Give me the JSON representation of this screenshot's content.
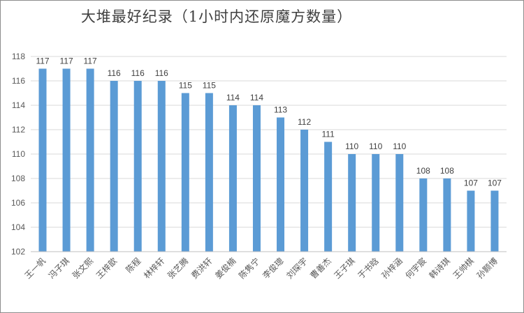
{
  "chart_data": {
    "type": "bar",
    "title": "大堆最好纪录（1小时内还原魔方数量）",
    "xlabel": "",
    "ylabel": "",
    "categories": [
      "王一帆",
      "冯子琪",
      "张文熙",
      "王梓歆",
      "陈程",
      "林梓轩",
      "张艺腾",
      "费洪轩",
      "姜俊楠",
      "陈隽宁",
      "李俊璁",
      "刘琛宇",
      "曹善杰",
      "王子琪",
      "于书晗",
      "孙梓涵",
      "何宇宸",
      "韩诗琪",
      "王帅棋",
      "孙颢博"
    ],
    "values": [
      117,
      117,
      117,
      116,
      116,
      116,
      115,
      115,
      114,
      114,
      113,
      112,
      111,
      110,
      110,
      110,
      108,
      108,
      107,
      107
    ],
    "ylim": [
      102,
      118
    ],
    "yticks": [
      102,
      104,
      106,
      108,
      110,
      112,
      114,
      116,
      118
    ],
    "grid": true,
    "legend": "none",
    "bar_color": "#5b9bd5",
    "grid_color": "#d9d9d9"
  }
}
